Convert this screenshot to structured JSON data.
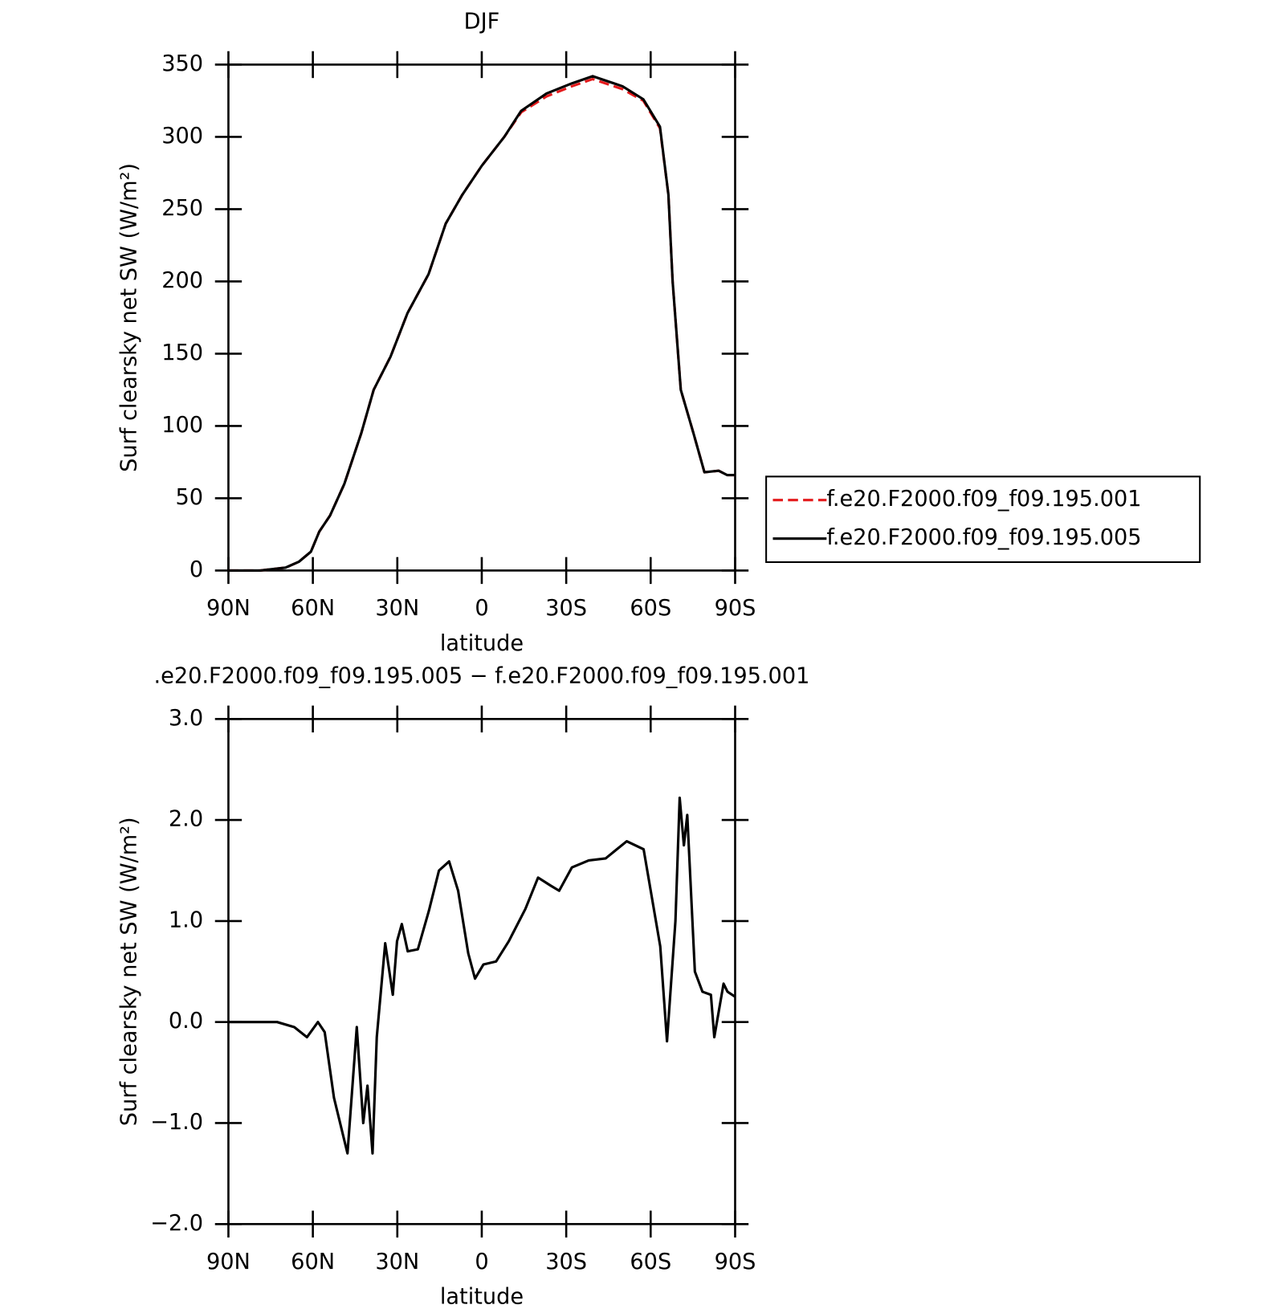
{
  "chart_data": [
    {
      "type": "line",
      "title": "DJF",
      "xlabel": "latitude",
      "ylabel": "Surf clearsky net SW (W/m²)",
      "x": [
        90,
        78.7,
        69.7,
        65,
        60.7,
        57.7,
        53.9,
        48.8,
        42.8,
        38.4,
        32.4,
        26.4,
        18.9,
        12.8,
        6.9,
        0,
        -8,
        -14,
        -23,
        -32,
        -39.4,
        -50,
        -57.4,
        -63.3,
        -66.3,
        -67.8,
        -70.7,
        -75.2,
        -79.1,
        -84.2,
        -87.2,
        -90
      ],
      "series": [
        {
          "name": "f.e20.F2000.f09_f09.195.001",
          "color": "#e41a1c",
          "dash": true,
          "values": [
            0,
            0,
            2,
            6,
            13,
            27,
            38,
            60,
            95,
            125,
            148,
            178,
            205,
            240,
            260,
            280,
            300,
            317,
            328,
            335,
            340,
            333,
            325,
            306,
            260,
            200,
            125,
            95,
            68,
            69,
            66,
            66
          ]
        },
        {
          "name": "f.e20.F2000.f09_f09.195.005",
          "color": "#000000",
          "dash": false,
          "values": [
            0,
            0,
            2,
            6,
            13,
            27,
            38,
            60,
            95,
            125,
            148,
            178,
            205,
            240,
            260,
            280,
            300,
            318,
            330,
            337,
            342,
            335,
            326,
            307,
            260,
            200,
            125,
            95,
            68,
            69,
            66,
            66
          ]
        }
      ],
      "xlim": [
        90,
        -90
      ],
      "xticks": [
        {
          "value": 90,
          "label": "90N"
        },
        {
          "value": 60,
          "label": "60N"
        },
        {
          "value": 30,
          "label": "30N"
        },
        0,
        {
          "value": -30,
          "label": "30S"
        },
        {
          "value": -60,
          "label": "60S"
        },
        {
          "value": -90,
          "label": "90S"
        }
      ],
      "ylim": [
        0,
        350
      ],
      "yticks": [
        0,
        50,
        100,
        150,
        200,
        250,
        300,
        350
      ],
      "legend": "right"
    },
    {
      "type": "line",
      "title": ".e20.F2000.f09_f09.195.005 − f.e20.F2000.f09_f09.195.001",
      "xlabel": "latitude",
      "ylabel": "Surf clearsky net SW (W/m²)",
      "x": [
        90,
        72.7,
        66.6,
        62.1,
        58.2,
        55.8,
        52.5,
        47.7,
        44.4,
        42.1,
        40.6,
        38.8,
        37.3,
        34.3,
        31.6,
        30.1,
        28.4,
        26.3,
        22.7,
        18.8,
        15.2,
        11.6,
        8.4,
        4.8,
        2.4,
        -0.6,
        -5.1,
        -9.6,
        -15.5,
        -20,
        -24.5,
        -27.5,
        -32,
        -38,
        -44,
        -51.5,
        -57.5,
        -63.4,
        -65.8,
        -68.8,
        -70.3,
        -71.8,
        -73,
        -75.7,
        -78.4,
        -81.4,
        -82.6,
        -85.9,
        -87.3,
        -90
      ],
      "series": [
        {
          "color": "#000000",
          "dash": false,
          "values": [
            0,
            0,
            -0.05,
            -0.15,
            0,
            -0.1,
            -0.75,
            -1.3,
            -0.05,
            -1.0,
            -0.63,
            -1.3,
            -0.15,
            0.78,
            0.27,
            0.8,
            0.97,
            0.7,
            0.72,
            1.1,
            1.5,
            1.59,
            1.3,
            0.68,
            0.43,
            0.57,
            0.6,
            0.8,
            1.12,
            1.43,
            1.35,
            1.3,
            1.53,
            1.6,
            1.62,
            1.79,
            1.71,
            0.75,
            -0.19,
            1.0,
            2.22,
            1.75,
            2.05,
            0.5,
            0.3,
            0.27,
            -0.15,
            0.38,
            0.3,
            0.25
          ]
        }
      ],
      "xlim": [
        90,
        -90
      ],
      "xticks": [
        {
          "value": 90,
          "label": "90N"
        },
        {
          "value": 60,
          "label": "60N"
        },
        {
          "value": 30,
          "label": "30N"
        },
        0,
        {
          "value": -30,
          "label": "30S"
        },
        {
          "value": -60,
          "label": "60S"
        },
        {
          "value": -90,
          "label": "90S"
        }
      ],
      "ylim": [
        -2,
        3
      ],
      "yticks": [
        {
          "value": -2,
          "label": "−2.0"
        },
        {
          "value": -1,
          "label": "−1.0"
        },
        {
          "value": 0,
          "label": "0.0"
        },
        {
          "value": 1,
          "label": "1.0"
        },
        {
          "value": 2,
          "label": "2.0"
        },
        {
          "value": 3,
          "label": "3.0"
        }
      ]
    }
  ]
}
